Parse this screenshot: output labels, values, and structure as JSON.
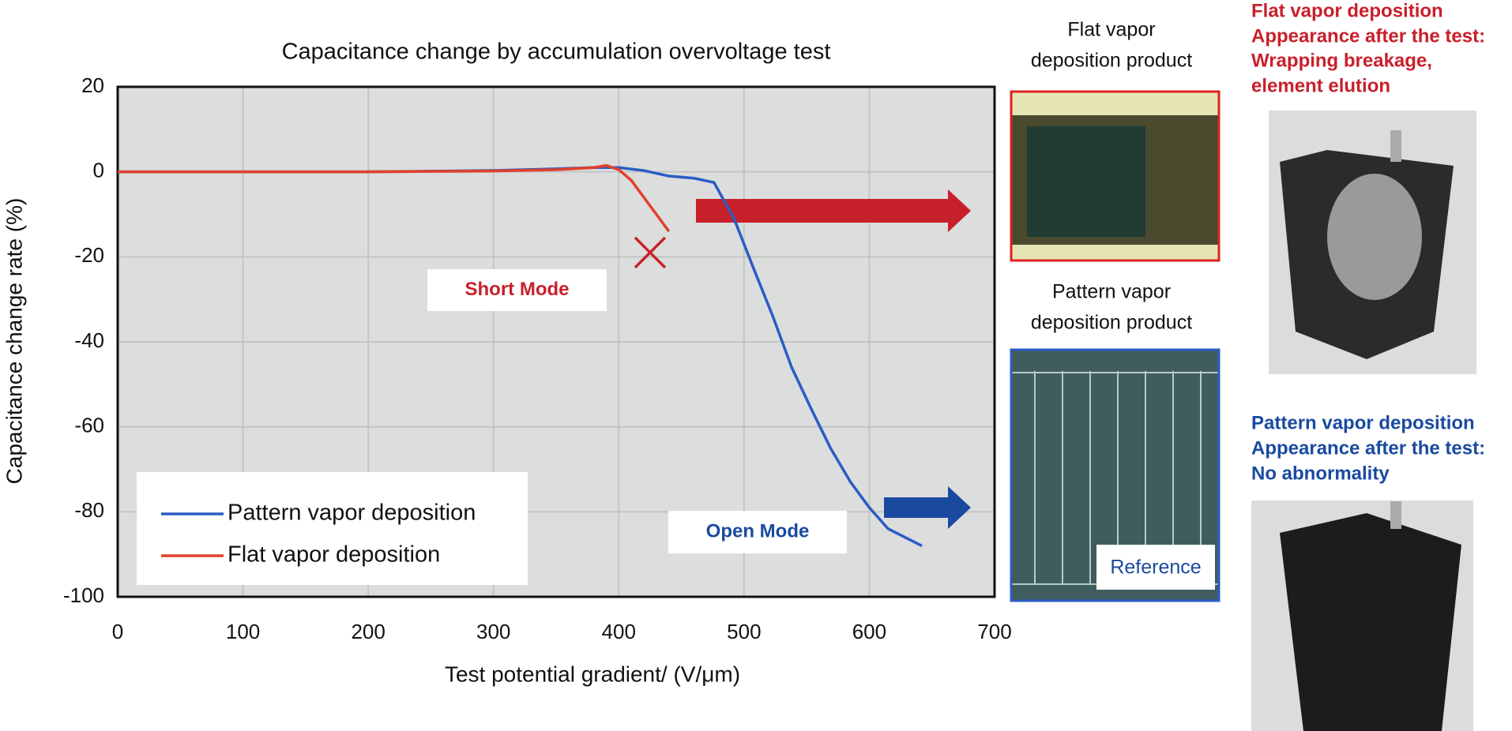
{
  "chart_data": {
    "type": "line",
    "title": "Capacitance change by accumulation overvoltage test",
    "x_label": "Test potential gradient/ (V/μm)",
    "y_label": "Capacitance change rate (%)",
    "xlim": [
      0,
      700
    ],
    "ylim": [
      -100,
      20
    ],
    "xticks": [
      0,
      100,
      200,
      300,
      400,
      500,
      600,
      700
    ],
    "yticks": [
      20,
      0,
      -20,
      -40,
      -60,
      -80,
      -100
    ],
    "grid": true,
    "legend": "lower left",
    "series": [
      {
        "name": "Pattern vapor deposition",
        "color": "#2a5cc4",
        "x": [
          0,
          100,
          200,
          300,
          350,
          380,
          400,
          420,
          440,
          460,
          476,
          492,
          508,
          523,
          538,
          554,
          569,
          585,
          600,
          615,
          642
        ],
        "values": [
          0,
          0,
          0,
          0.3,
          0.7,
          1,
          1,
          0.3,
          -1,
          -1.5,
          -2.5,
          -11,
          -23,
          -34,
          -46,
          -56,
          -65,
          -73,
          -79,
          -84,
          -88
        ]
      },
      {
        "name": "Flat vapor deposition",
        "color": "#e0412d",
        "x": [
          0,
          100,
          200,
          300,
          350,
          380,
          390,
          400,
          410,
          420,
          430,
          440
        ],
        "values": [
          0,
          0,
          0,
          0.2,
          0.5,
          1,
          1.5,
          0.5,
          -2,
          -6,
          -10,
          -14
        ]
      }
    ],
    "failure_point": {
      "x": 425,
      "y": -19,
      "color": "#c8202a"
    },
    "annotations": [
      {
        "text": "Short Mode",
        "color": "#c8202a"
      },
      {
        "text": "Open Mode",
        "color": "#1a4aa0"
      }
    ]
  },
  "photos": [
    {
      "label_lines": [
        "Flat vapor",
        "deposition product"
      ]
    },
    {
      "label_lines": [
        "Pattern vapor",
        "deposition product"
      ],
      "tag": "Reference"
    }
  ],
  "results": [
    {
      "color": "#c8202a",
      "lines": [
        "Flat vapor deposition",
        "Appearance after the test:",
        "Wrapping breakage,",
        "element elution"
      ]
    },
    {
      "color": "#1a4aa0",
      "lines": [
        "Pattern vapor deposition",
        "Appearance after the test:",
        "No abnormality"
      ]
    }
  ]
}
